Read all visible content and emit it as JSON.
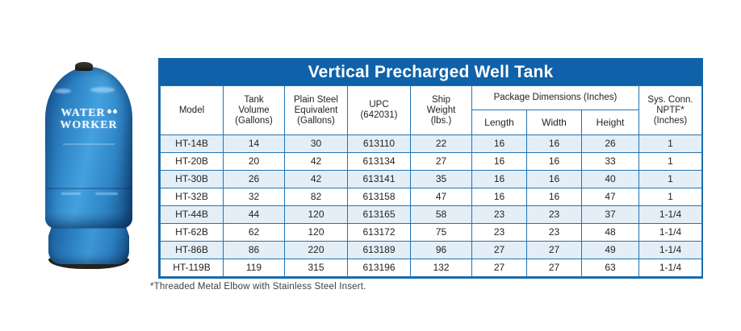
{
  "product_image": {
    "brand_line1": "WATER",
    "brand_line2": "WORKER",
    "description": "Blue vertical precharged well tank with black top cap and pedestal base",
    "colors": {
      "tank_blue": "#2e84c6",
      "tank_blue_dark": "#134a80",
      "cap_black": "#1e1c19",
      "label_white": "#f3f8fd"
    }
  },
  "table": {
    "title": "Vertical Precharged Well Tank",
    "headers": {
      "model": "Model",
      "tank_volume": "Tank\nVolume\n(Gallons)",
      "plain_steel": "Plain Steel\nEquivalent\n(Gallons)",
      "upc": "UPC\n(642031)",
      "ship_weight": "Ship\nWeight\n(lbs.)",
      "package_dimensions_group": "Package Dimensions (Inches)",
      "length": "Length",
      "width": "Width",
      "height": "Height",
      "sys_conn": "Sys. Conn.\nNPTF*\n(Inches)"
    },
    "rows": [
      [
        "HT-14B",
        "14",
        "30",
        "613110",
        "22",
        "16",
        "16",
        "26",
        "1"
      ],
      [
        "HT-20B",
        "20",
        "42",
        "613134",
        "27",
        "16",
        "16",
        "33",
        "1"
      ],
      [
        "HT-30B",
        "26",
        "42",
        "613141",
        "35",
        "16",
        "16",
        "40",
        "1"
      ],
      [
        "HT-32B",
        "32",
        "82",
        "613158",
        "47",
        "16",
        "16",
        "47",
        "1"
      ],
      [
        "HT-44B",
        "44",
        "120",
        "613165",
        "58",
        "23",
        "23",
        "37",
        "1-1/4"
      ],
      [
        "HT-62B",
        "62",
        "120",
        "613172",
        "75",
        "23",
        "23",
        "48",
        "1-1/4"
      ],
      [
        "HT-86B",
        "86",
        "220",
        "613189",
        "96",
        "27",
        "27",
        "49",
        "1-1/4"
      ],
      [
        "HT-119B",
        "119",
        "315",
        "613196",
        "132",
        "27",
        "27",
        "63",
        "1-1/4"
      ]
    ],
    "colors": {
      "header_blue": "#0f62a9",
      "border_blue": "#2273b3",
      "row_alt_blue": "#e4eef7",
      "text_dark": "#232323"
    }
  },
  "footnote": "*Threaded Metal Elbow with Stainless Steel Insert."
}
